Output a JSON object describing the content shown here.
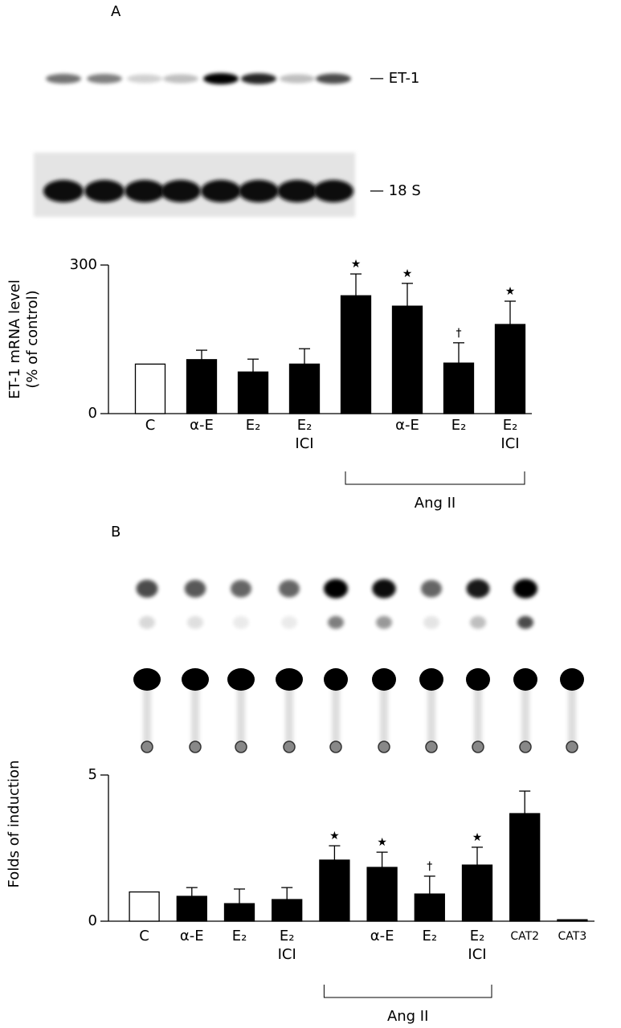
{
  "chart_data": [
    {
      "type": "bar",
      "panel": "A",
      "blot_labels": [
        "— ET-1",
        "— 18 S"
      ],
      "ylabel": [
        "ET-1 mRNA level",
        "(% of control)"
      ],
      "categories": [
        "C",
        "α-E",
        [
          "E₂"
        ],
        [
          "E₂",
          "ICI"
        ],
        null,
        "α-E",
        [
          "E₂"
        ],
        [
          "E₂",
          "ICI"
        ]
      ],
      "values": [
        100,
        109,
        84,
        100,
        238,
        217,
        102,
        180
      ],
      "errors": [
        null,
        19,
        26,
        31,
        44,
        46,
        41,
        47
      ],
      "colors": [
        "#ffffff",
        "#000000",
        "#000000",
        "#000000",
        "#000000",
        "#000000",
        "#000000",
        "#000000"
      ],
      "annotations": [
        null,
        null,
        null,
        null,
        "★",
        "★",
        "†",
        "★"
      ],
      "groups": [
        {
          "name": "Ang II",
          "categories": [
            4,
            5,
            6,
            7
          ]
        }
      ],
      "ylim": [
        0,
        300
      ],
      "yticks": [
        0,
        300
      ]
    },
    {
      "type": "bar",
      "panel": "B",
      "ylabel": [
        "Folds of induction"
      ],
      "categories": [
        "C",
        "α-E",
        [
          "E₂"
        ],
        [
          "E₂",
          "ICI"
        ],
        null,
        "α-E",
        [
          "E₂"
        ],
        [
          "E₂",
          "ICI"
        ],
        "CAT2",
        "CAT3"
      ],
      "values": [
        1.0,
        0.85,
        0.6,
        0.74,
        2.09,
        1.84,
        0.93,
        1.92,
        3.68,
        0.05
      ],
      "errors": [
        null,
        0.3,
        0.5,
        0.41,
        0.49,
        0.52,
        0.61,
        0.61,
        0.77,
        null
      ],
      "colors": [
        "#ffffff",
        "#000000",
        "#000000",
        "#000000",
        "#000000",
        "#000000",
        "#000000",
        "#000000",
        "#000000",
        "#000000"
      ],
      "annotations": [
        null,
        null,
        null,
        null,
        "★",
        "★",
        "†",
        "★",
        null,
        null
      ],
      "groups": [
        {
          "name": "Ang II",
          "categories": [
            4,
            5,
            6,
            7
          ]
        }
      ],
      "ylim": [
        0,
        5
      ],
      "yticks": [
        0,
        5
      ]
    }
  ]
}
